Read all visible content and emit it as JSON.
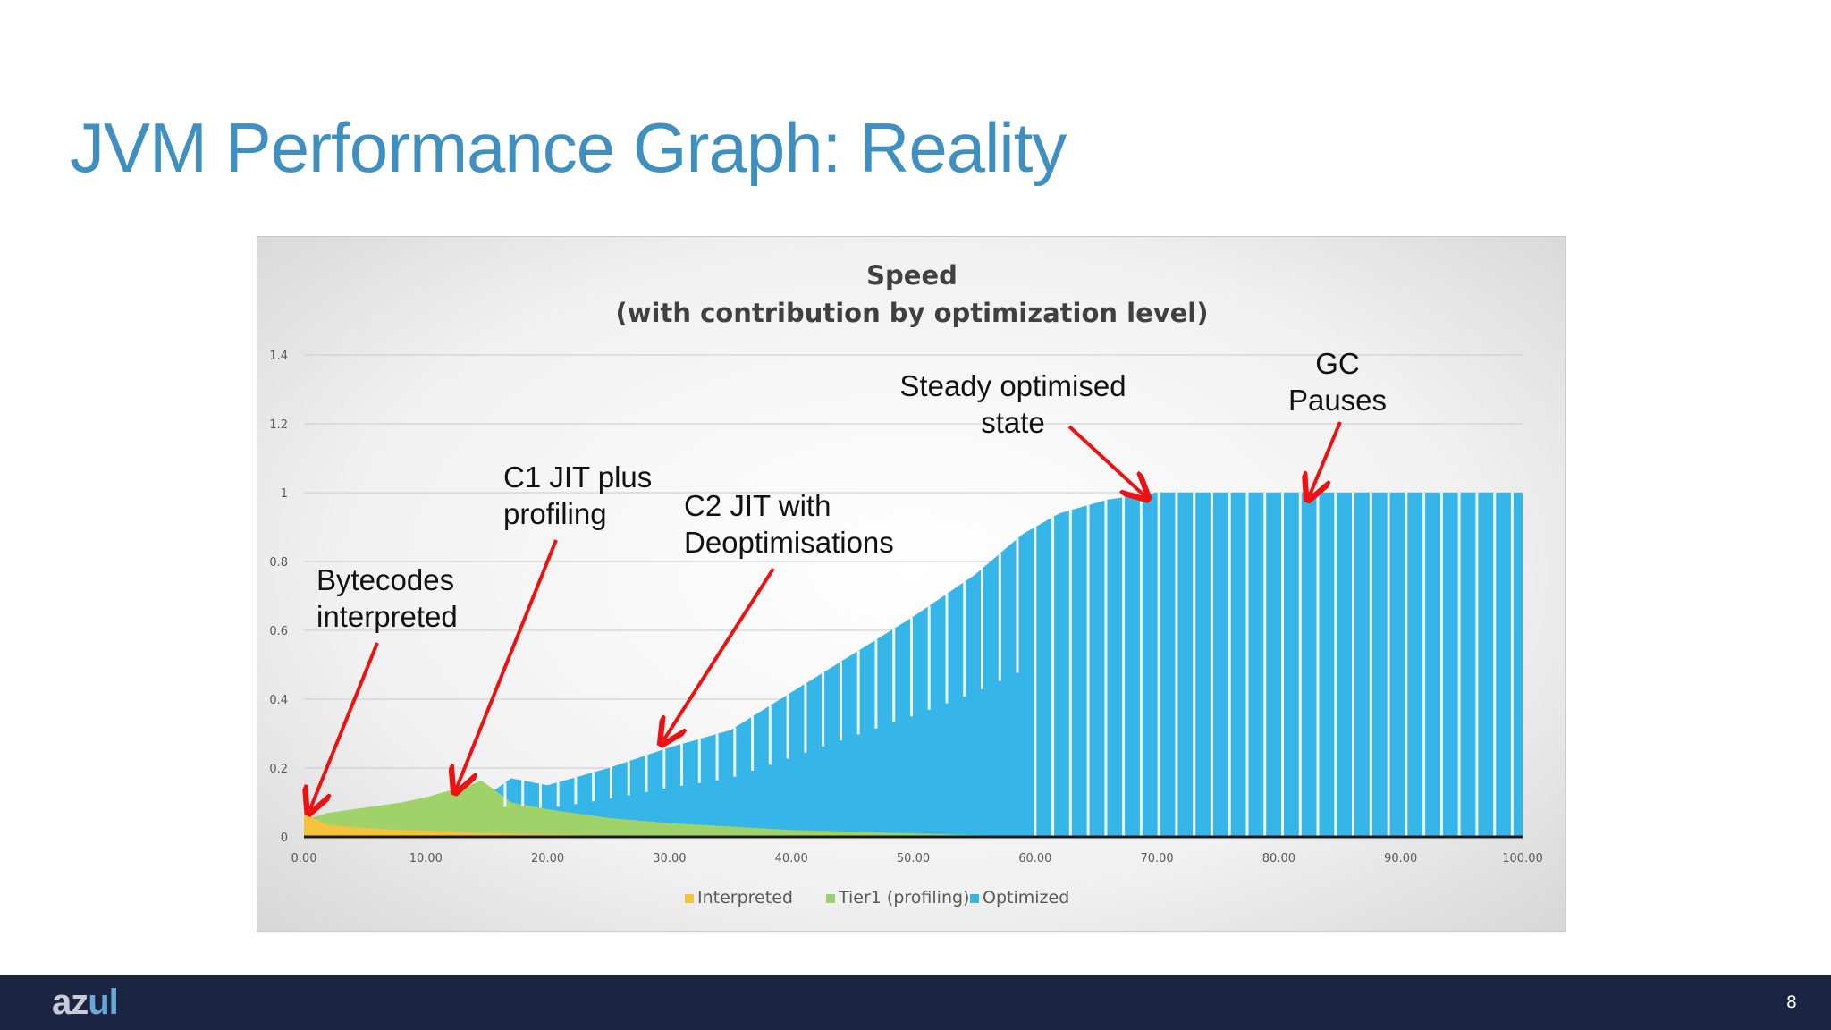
{
  "slide": {
    "title": "JVM Performance Graph: Reality",
    "page_number": "8",
    "logo": {
      "text_a": "az",
      "text_b": "ul"
    }
  },
  "chart_data": {
    "type": "area",
    "title": "Speed",
    "subtitle": "(with contribution by optimization level)",
    "xlim": [
      0,
      100
    ],
    "ylim": [
      0,
      1.4
    ],
    "x_ticks": [
      "0.00",
      "10.00",
      "20.00",
      "30.00",
      "40.00",
      "50.00",
      "60.00",
      "70.00",
      "80.00",
      "90.00",
      "100.00"
    ],
    "y_ticks": [
      "0",
      "0.2",
      "0.4",
      "0.6",
      "0.8",
      "1",
      "1.2",
      "1.4"
    ],
    "grid": true,
    "legend_position": "bottom",
    "colors": {
      "interpreted": "#f5c33b",
      "tier1": "#9fd36a",
      "optimized": "#36b6e8"
    },
    "series": [
      {
        "name": "Interpreted",
        "x": [
          0,
          1,
          2,
          4,
          6,
          8,
          10,
          12,
          14,
          16,
          20,
          25,
          30,
          40
        ],
        "values": [
          0.07,
          0.05,
          0.035,
          0.028,
          0.024,
          0.02,
          0.018,
          0.015,
          0.012,
          0.01,
          0.007,
          0.004,
          0.002,
          0
        ]
      },
      {
        "name": "Tier1 (profiling)",
        "x": [
          0,
          1,
          2,
          4,
          6,
          8,
          10,
          12,
          14,
          14.5,
          15.5,
          17,
          20,
          25,
          30,
          35,
          40,
          45,
          50,
          55,
          58,
          60
        ],
        "values": [
          0.05,
          0.06,
          0.07,
          0.08,
          0.09,
          0.1,
          0.115,
          0.135,
          0.155,
          0.165,
          0.14,
          0.1,
          0.08,
          0.055,
          0.04,
          0.03,
          0.02,
          0.015,
          0.01,
          0.005,
          0.002,
          0
        ]
      },
      {
        "name": "Optimized",
        "x": [
          0,
          14,
          15,
          17,
          20,
          25,
          30,
          35,
          40,
          45,
          50,
          55,
          57,
          59,
          60,
          61,
          62,
          64,
          66,
          68,
          70,
          100
        ],
        "values": [
          0,
          0,
          0.12,
          0.17,
          0.15,
          0.2,
          0.26,
          0.31,
          0.42,
          0.53,
          0.64,
          0.76,
          0.82,
          0.88,
          0.9,
          0.92,
          0.94,
          0.96,
          0.98,
          0.99,
          1.0,
          1.0
        ]
      }
    ],
    "annotations": [
      {
        "lines": [
          "Bytecodes",
          "interpreted"
        ],
        "target_x": 0.5,
        "target_y": 0.08
      },
      {
        "lines": [
          "C1 JIT plus",
          "profiling"
        ],
        "target_x": 12.5,
        "target_y": 0.14
      },
      {
        "lines": [
          "C2 JIT with",
          "Deoptimisations"
        ],
        "target_x": 29.5,
        "target_y": 0.28
      },
      {
        "lines": [
          "Steady optimised",
          "state"
        ],
        "target_x": 69,
        "target_y": 0.99
      },
      {
        "lines": [
          "GC",
          "Pauses"
        ],
        "target_x": 82.5,
        "target_y": 0.99
      }
    ]
  }
}
